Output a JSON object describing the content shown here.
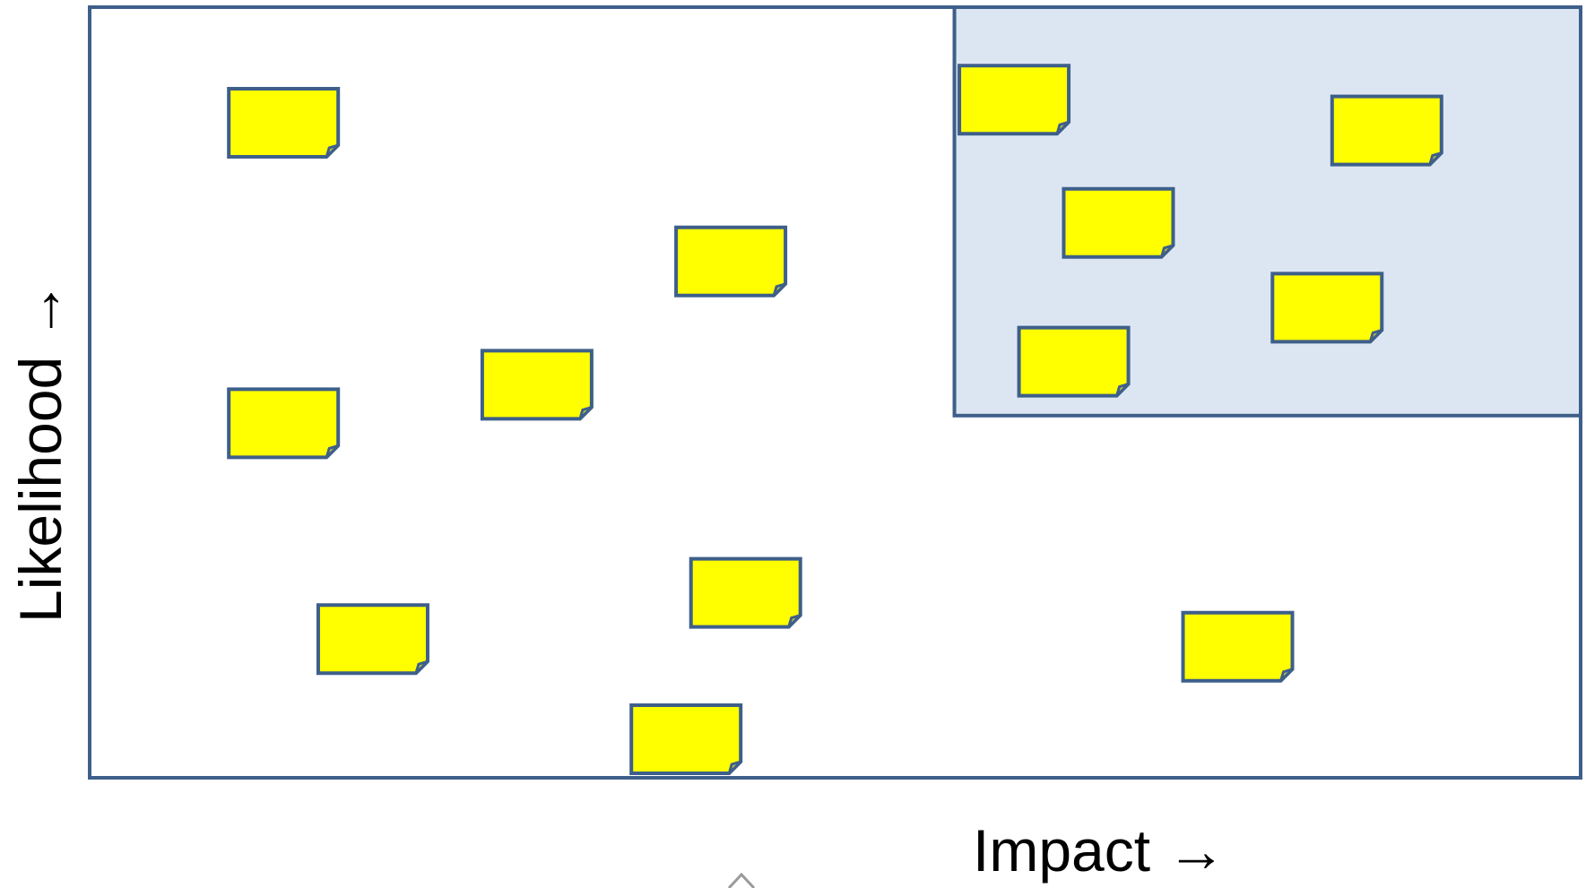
{
  "diagram": {
    "x_axis_label": "Impact →",
    "y_axis_label": "Likelihood →",
    "colors": {
      "frame": "#3e5f8a",
      "highlight_fill": "#dce6f2",
      "note_fill": "#ffff00",
      "background": "#ffffff"
    },
    "notes": [
      {
        "impact": 0.13,
        "likelihood": 0.85
      },
      {
        "impact": 0.43,
        "likelihood": 0.67
      },
      {
        "impact": 0.3,
        "likelihood": 0.51
      },
      {
        "impact": 0.13,
        "likelihood": 0.46
      },
      {
        "impact": 0.19,
        "likelihood": 0.18
      },
      {
        "impact": 0.44,
        "likelihood": 0.24
      },
      {
        "impact": 0.4,
        "likelihood": 0.05
      },
      {
        "impact": 0.77,
        "likelihood": 0.17
      },
      {
        "impact": 0.62,
        "likelihood": 0.88
      },
      {
        "impact": 0.87,
        "likelihood": 0.84
      },
      {
        "impact": 0.69,
        "likelihood": 0.72
      },
      {
        "impact": 0.83,
        "likelihood": 0.61
      },
      {
        "impact": 0.66,
        "likelihood": 0.54
      }
    ],
    "highlight_region": {
      "impact_min": 0.58,
      "impact_max": 1.0,
      "likelihood_min": 0.47,
      "likelihood_max": 1.0
    }
  }
}
